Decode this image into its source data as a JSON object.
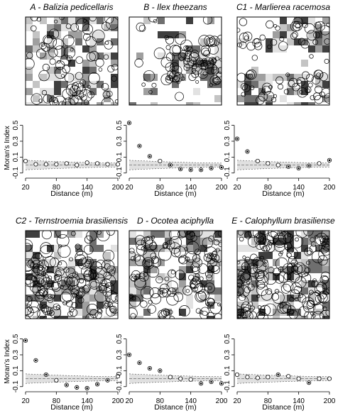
{
  "chart_data": {
    "type": "scatter",
    "figure": "species spatial maps with Moran's I correlograms",
    "xlabel": "Distance (m)",
    "ylabel": "Moran's Index",
    "xticks": [
      20,
      80,
      140,
      200
    ],
    "xlim": [
      20,
      200
    ],
    "yticks": [
      "0.5",
      "0.3",
      "0.1",
      "-0.1"
    ],
    "ylim": [
      -0.12,
      0.55
    ],
    "panels": [
      {
        "label": "A",
        "species": "Balizia pedicellaris",
        "morans_i": [
          {
            "d": 20,
            "i": 0.05,
            "sig": false
          },
          {
            "d": 40,
            "i": 0.01,
            "sig": false
          },
          {
            "d": 60,
            "i": 0.01,
            "sig": false
          },
          {
            "d": 80,
            "i": 0.01,
            "sig": false
          },
          {
            "d": 100,
            "i": 0.02,
            "sig": false
          },
          {
            "d": 120,
            "i": 0.0,
            "sig": false
          },
          {
            "d": 140,
            "i": 0.03,
            "sig": false
          },
          {
            "d": 160,
            "i": 0.02,
            "sig": false
          },
          {
            "d": 180,
            "i": 0.01,
            "sig": false
          },
          {
            "d": 200,
            "i": 0.01,
            "sig": false
          }
        ]
      },
      {
        "label": "B",
        "species": "Ilex theezans",
        "morans_i": [
          {
            "d": 20,
            "i": 0.53,
            "sig": true
          },
          {
            "d": 40,
            "i": 0.24,
            "sig": true
          },
          {
            "d": 60,
            "i": 0.11,
            "sig": true
          },
          {
            "d": 80,
            "i": 0.05,
            "sig": false
          },
          {
            "d": 100,
            "i": 0.0,
            "sig": true
          },
          {
            "d": 120,
            "i": -0.05,
            "sig": true
          },
          {
            "d": 140,
            "i": -0.06,
            "sig": true
          },
          {
            "d": 160,
            "i": -0.06,
            "sig": true
          },
          {
            "d": 180,
            "i": -0.04,
            "sig": true
          },
          {
            "d": 200,
            "i": -0.03,
            "sig": true
          }
        ]
      },
      {
        "label": "C1",
        "species": "Marlierea racemosa",
        "morans_i": [
          {
            "d": 20,
            "i": 0.33,
            "sig": true
          },
          {
            "d": 40,
            "i": 0.17,
            "sig": true
          },
          {
            "d": 60,
            "i": 0.05,
            "sig": false
          },
          {
            "d": 80,
            "i": 0.02,
            "sig": false
          },
          {
            "d": 100,
            "i": 0.0,
            "sig": false
          },
          {
            "d": 120,
            "i": -0.02,
            "sig": true
          },
          {
            "d": 140,
            "i": -0.04,
            "sig": true
          },
          {
            "d": 160,
            "i": -0.01,
            "sig": true
          },
          {
            "d": 180,
            "i": 0.02,
            "sig": false
          },
          {
            "d": 200,
            "i": 0.06,
            "sig": true
          }
        ]
      },
      {
        "label": "C2",
        "species": "Ternstroemia brasiliensis",
        "morans_i": [
          {
            "d": 20,
            "i": 0.48,
            "sig": true
          },
          {
            "d": 40,
            "i": 0.23,
            "sig": true
          },
          {
            "d": 60,
            "i": 0.05,
            "sig": true
          },
          {
            "d": 80,
            "i": -0.02,
            "sig": false
          },
          {
            "d": 100,
            "i": -0.08,
            "sig": true
          },
          {
            "d": 120,
            "i": -0.11,
            "sig": true
          },
          {
            "d": 140,
            "i": -0.12,
            "sig": true
          },
          {
            "d": 160,
            "i": -0.07,
            "sig": true
          },
          {
            "d": 180,
            "i": -0.02,
            "sig": true
          },
          {
            "d": 200,
            "i": 0.03,
            "sig": false
          }
        ]
      },
      {
        "label": "D",
        "species": "Ocotea aciphylla",
        "morans_i": [
          {
            "d": 20,
            "i": 0.3,
            "sig": true
          },
          {
            "d": 40,
            "i": 0.2,
            "sig": true
          },
          {
            "d": 60,
            "i": 0.13,
            "sig": true
          },
          {
            "d": 80,
            "i": 0.1,
            "sig": true
          },
          {
            "d": 100,
            "i": 0.02,
            "sig": false
          },
          {
            "d": 120,
            "i": 0.0,
            "sig": false
          },
          {
            "d": 140,
            "i": -0.01,
            "sig": false
          },
          {
            "d": 160,
            "i": -0.06,
            "sig": true
          },
          {
            "d": 180,
            "i": -0.04,
            "sig": true
          },
          {
            "d": 200,
            "i": -0.06,
            "sig": true
          }
        ]
      },
      {
        "label": "E",
        "species": "Calophyllum brasiliense",
        "morans_i": [
          {
            "d": 20,
            "i": 0.05,
            "sig": false
          },
          {
            "d": 40,
            "i": 0.02,
            "sig": false
          },
          {
            "d": 60,
            "i": 0.01,
            "sig": false
          },
          {
            "d": 80,
            "i": 0.02,
            "sig": false
          },
          {
            "d": 100,
            "i": 0.05,
            "sig": true
          },
          {
            "d": 120,
            "i": 0.03,
            "sig": false
          },
          {
            "d": 140,
            "i": 0.0,
            "sig": false
          },
          {
            "d": 160,
            "i": -0.05,
            "sig": true
          },
          {
            "d": 180,
            "i": 0.0,
            "sig": false
          },
          {
            "d": 200,
            "i": 0.0,
            "sig": false
          }
        ]
      }
    ]
  }
}
